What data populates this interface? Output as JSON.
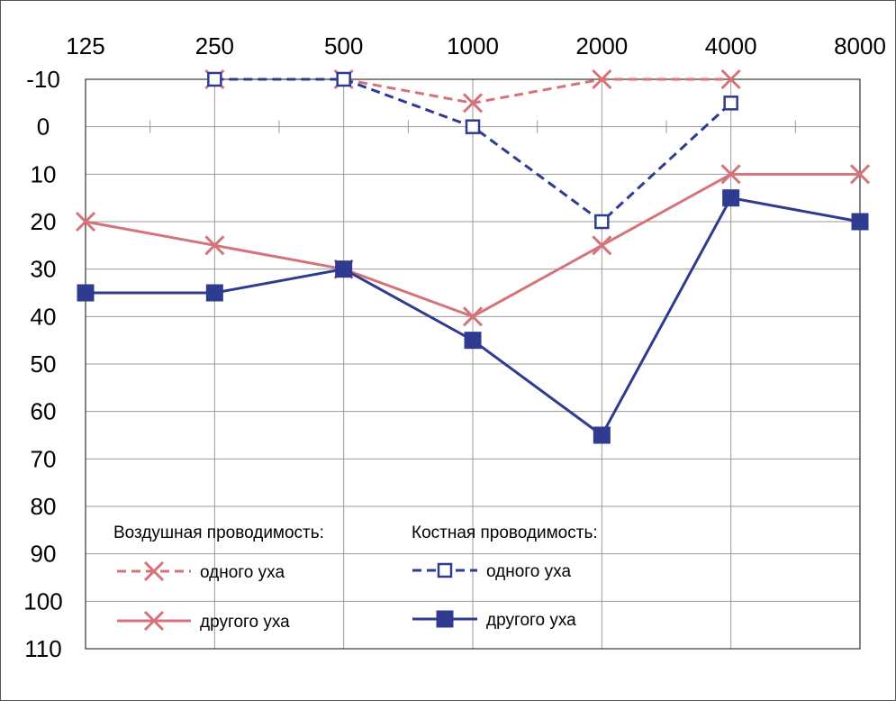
{
  "chart_data": {
    "type": "line",
    "x": [
      125,
      250,
      500,
      1000,
      2000,
      4000,
      8000
    ],
    "x_tick_labels": [
      "125",
      "250",
      "500",
      "1000",
      "2000",
      "4000",
      "8000"
    ],
    "x_scale": "log2",
    "x_axis_position": "top",
    "y_tick_labels": [
      "-10",
      "0",
      "10",
      "20",
      "30",
      "40",
      "50",
      "60",
      "70",
      "80",
      "90",
      "100",
      "110"
    ],
    "ylim": [
      -10,
      110
    ],
    "y_inverted": true,
    "grid": true,
    "legend_placement": "bottom-center",
    "legend": {
      "air_heading": "Воздушная проводимость:",
      "bone_heading": "Костная проводимость:",
      "air_one_label": "одного уха",
      "air_other_label": "другого уха",
      "bone_one_label": "одного уха",
      "bone_other_label": "другого уха"
    },
    "series": [
      {
        "key": "air_one",
        "group": "Воздушная проводимость",
        "name": "одного уха",
        "color": "#d4747a",
        "dash": true,
        "marker": "x",
        "points": [
          [
            250,
            -10
          ],
          [
            500,
            -10
          ],
          [
            1000,
            -5
          ],
          [
            2000,
            -10
          ],
          [
            4000,
            -10
          ]
        ]
      },
      {
        "key": "air_other",
        "group": "Воздушная проводимость",
        "name": "другого уха",
        "color": "#d4747a",
        "dash": false,
        "marker": "x",
        "points": [
          [
            125,
            20
          ],
          [
            250,
            25
          ],
          [
            500,
            30
          ],
          [
            1000,
            40
          ],
          [
            2000,
            25
          ],
          [
            4000,
            10
          ],
          [
            8000,
            10
          ]
        ]
      },
      {
        "key": "bone_one",
        "group": "Костная проводимость",
        "name": "одного уха",
        "color": "#2e3b8f",
        "dash": true,
        "marker": "square-open",
        "points": [
          [
            250,
            -10
          ],
          [
            500,
            -10
          ],
          [
            1000,
            0
          ],
          [
            2000,
            20
          ],
          [
            4000,
            -5
          ]
        ]
      },
      {
        "key": "bone_other",
        "group": "Костная проводимость",
        "name": "другого уха",
        "color": "#2e3b8f",
        "dash": false,
        "marker": "square-filled",
        "points": [
          [
            125,
            35
          ],
          [
            250,
            35
          ],
          [
            500,
            30
          ],
          [
            1000,
            45
          ],
          [
            2000,
            65
          ],
          [
            4000,
            15
          ],
          [
            8000,
            20
          ]
        ]
      }
    ]
  }
}
